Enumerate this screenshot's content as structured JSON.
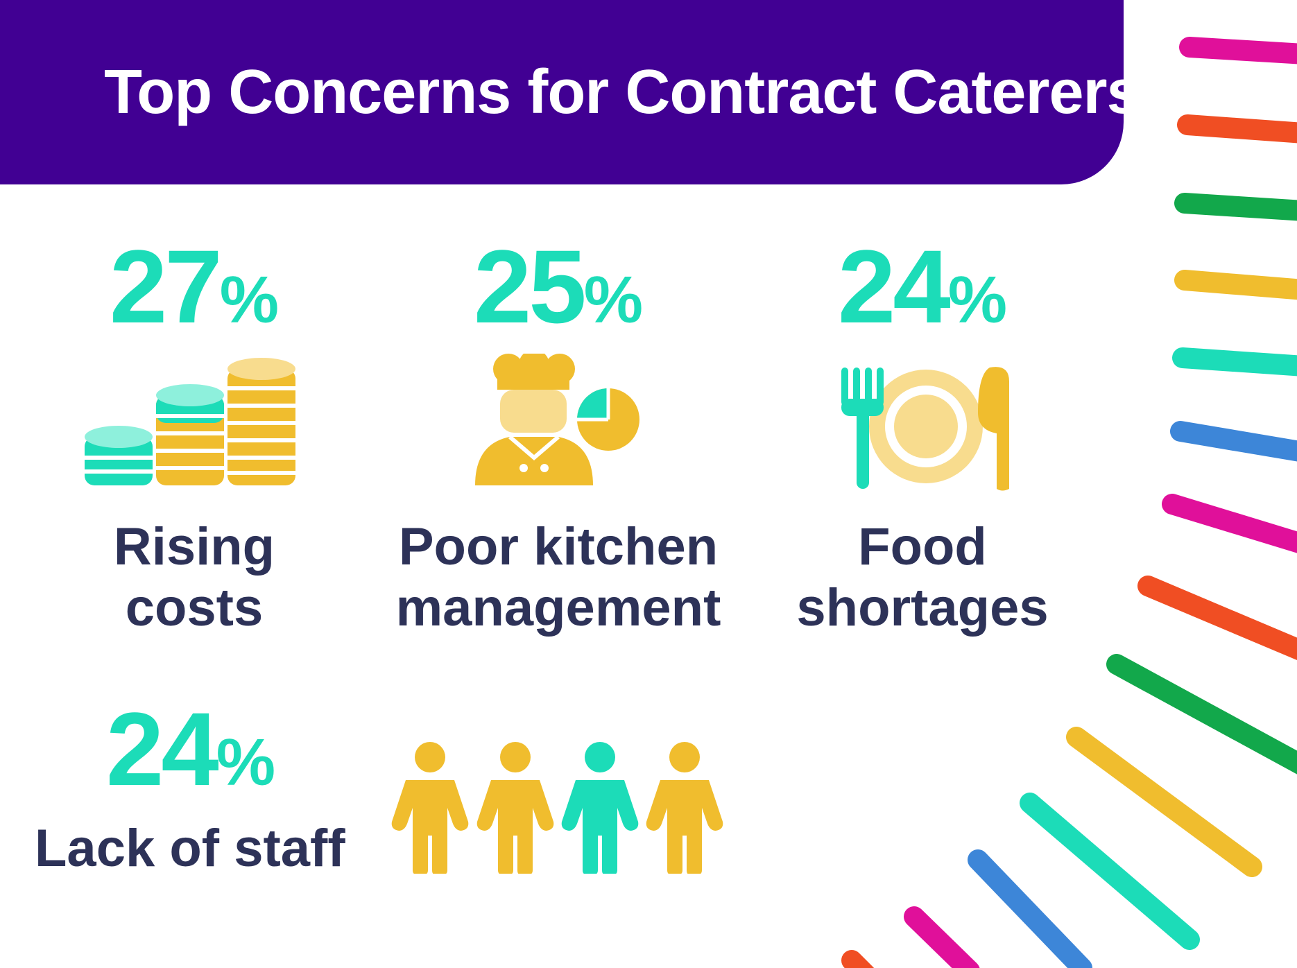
{
  "header": {
    "title": "Top Concerns for Contract Caterers"
  },
  "stats": [
    {
      "value": "27",
      "unit": "%",
      "label_line1": "Rising",
      "label_line2": "costs",
      "icon": "coin-stacks-icon"
    },
    {
      "value": "25",
      "unit": "%",
      "label_line1": "Poor kitchen",
      "label_line2": "management",
      "icon": "chef-icon"
    },
    {
      "value": "24",
      "unit": "%",
      "label_line1": "Food",
      "label_line2": "shortages",
      "icon": "plate-cutlery-icon"
    },
    {
      "value": "24",
      "unit": "%",
      "label_line1": "Lack of staff",
      "icon": "people-icon"
    }
  ],
  "colors": {
    "banner": "#410093",
    "accent": "#1cdcb8",
    "yellow": "#f0bd2e",
    "text": "#2d3258"
  }
}
